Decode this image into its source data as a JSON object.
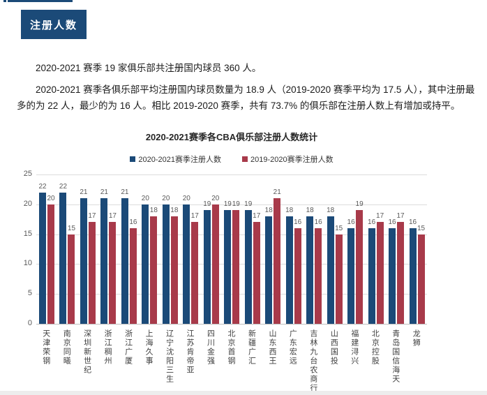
{
  "page": {
    "badge_label": "注册人数",
    "intro": {
      "paragraph1": "2020-2021 赛季 19 家俱乐部共注册国内球员 360 人。",
      "paragraph2": "2020-2021 赛季各俱乐部平均注册国内球员数量为 18.9 人（2019-2020 赛季平均为 17.5 人），其中注册最多的为 22 人，最少的为 16 人。相比 2019-2020 赛季，共有 73.7% 的俱乐部在注册人数上有增加或持平。"
    }
  },
  "chart_data": {
    "type": "bar",
    "title": "2020-2021赛季各CBA俱乐部注册人数统计",
    "categories": [
      "天津荣钢",
      "南京同曦",
      "深圳新世纪",
      "浙江稠州",
      "浙江广厦",
      "上海久事",
      "辽宁沈阳三生",
      "江苏肯帝亚",
      "四川金强",
      "北京首钢",
      "新疆广汇",
      "山东西王",
      "广东宏远",
      "吉林九台农商行",
      "山西国投",
      "福建浔兴",
      "北京控股",
      "青岛国信海天",
      "龙狮"
    ],
    "series": [
      {
        "name": "2020-2021赛季注册人数",
        "color": "#1b4a78",
        "values": [
          22,
          22,
          21,
          21,
          21,
          20,
          20,
          20,
          19,
          19,
          19,
          18,
          18,
          18,
          18,
          16,
          16,
          16,
          16
        ]
      },
      {
        "name": "2019-2020赛季注册人数",
        "color": "#a83a4a",
        "values": [
          20,
          15,
          17,
          17,
          16,
          18,
          18,
          17,
          20,
          19,
          17,
          21,
          16,
          16,
          15,
          19,
          17,
          17,
          15
        ]
      }
    ],
    "ylim": [
      0,
      25
    ],
    "yticks": [
      0,
      5,
      10,
      15,
      20,
      25
    ],
    "grid": true,
    "legend_position": "top",
    "value_labels": true,
    "xlabel": "",
    "ylabel": ""
  }
}
